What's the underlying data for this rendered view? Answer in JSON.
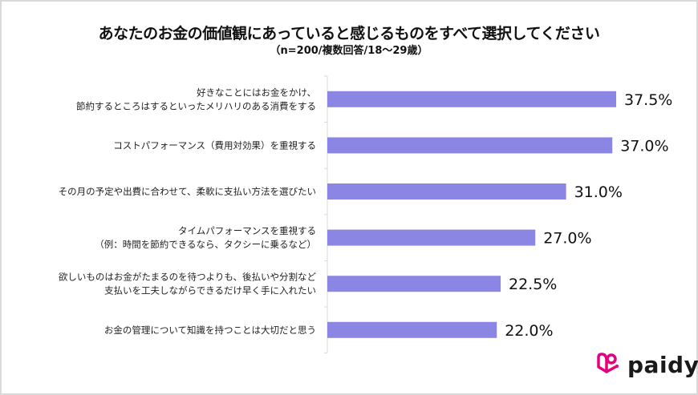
{
  "chart_data": {
    "type": "bar",
    "orientation": "horizontal",
    "title": "あなたのお金の価値観にあっていると感じるものをすべて選択してください",
    "subtitle": "（n=200/複数回答/18～29歳）",
    "categories": [
      [
        "好きなことにはお金をかけ、",
        "節約するところはするといったメリハリのある消費をする"
      ],
      [
        "コストパフォーマンス（費用対効果）を重視する"
      ],
      [
        "その月の予定や出費に合わせて、柔軟に支払い方法を選びたい"
      ],
      [
        "タイムパフォーマンスを重視する",
        "（例：時間を節約できるなら、タクシーに乗るなど）"
      ],
      [
        "欲しいものはお金がたまるのを待つよりも、後払いや分割など",
        "支払いを工夫しながらできるだけ早く手に入れたい"
      ],
      [
        "お金の管理について知識を持つことは大切だと思う"
      ]
    ],
    "values": [
      37.5,
      37.0,
      31.0,
      27.0,
      22.5,
      22.0
    ],
    "labels": [
      "37.5%",
      "37.0%",
      "31.0%",
      "27.0%",
      "22.5%",
      "22.0%"
    ],
    "unit": "%",
    "xlim": [
      0,
      40
    ],
    "grid": false,
    "bar_color": "#8b86e3"
  },
  "brand": {
    "logo_text": "paidy",
    "logo_color": "#e5007f"
  }
}
